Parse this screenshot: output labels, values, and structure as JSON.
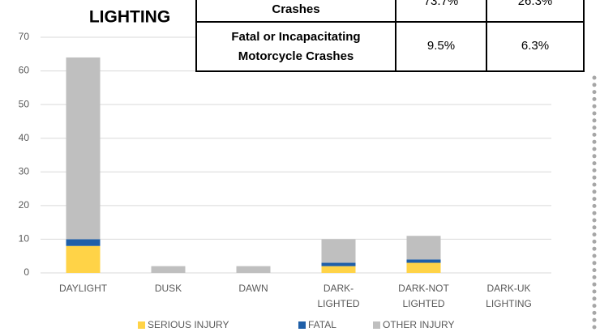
{
  "chart_data": {
    "type": "stacked_bar",
    "title": "LIGHTING",
    "categories": [
      "DAYLIGHT",
      "DUSK",
      "DAWN",
      "DARK-\nLIGHTED",
      "DARK-NOT\nLIGHTED",
      "DARK-UK\nLIGHTING"
    ],
    "series": [
      {
        "name": "SERIOUS INJURY",
        "color": "#ffd347",
        "values": [
          8,
          0,
          0,
          2,
          3,
          0
        ]
      },
      {
        "name": "FATAL",
        "color": "#1f5fa8",
        "values": [
          2,
          0,
          0,
          1,
          1,
          0
        ]
      },
      {
        "name": "OTHER INJURY",
        "color": "#bfbfbf",
        "values": [
          54,
          2,
          2,
          7,
          7,
          0
        ]
      }
    ],
    "ylim": [
      0,
      70
    ],
    "yticks": [
      0,
      10,
      20,
      30,
      40,
      50,
      60,
      70
    ],
    "grid": true,
    "legend": "bottom"
  },
  "table": {
    "rows": [
      [
        "Crashes",
        "73.7%",
        "26.3%"
      ],
      [
        "Fatal or Incapacitating\nMotorcycle Crashes",
        "9.5%",
        "6.3%"
      ]
    ]
  }
}
